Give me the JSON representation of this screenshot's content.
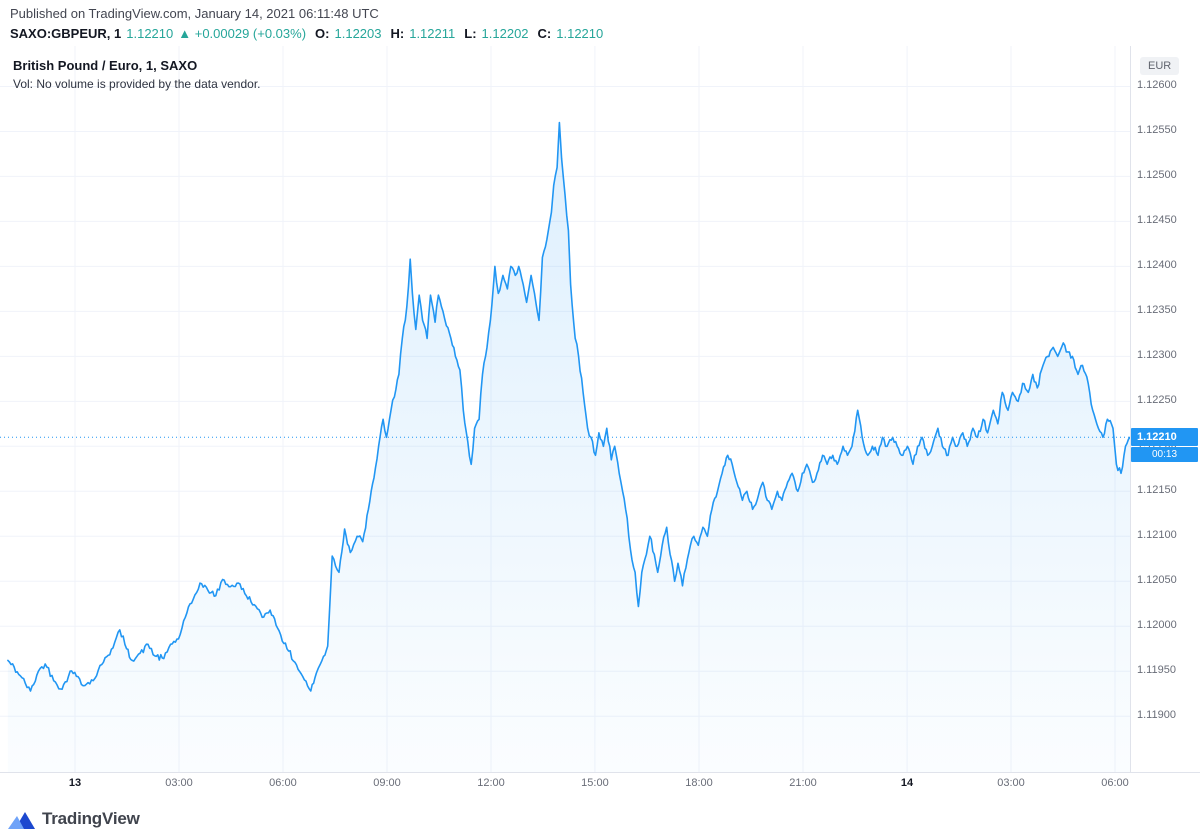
{
  "header": {
    "published": "Published on TradingView.com, January 14, 2021 06:11:48 UTC",
    "symbol": "SAXO:GBPEUR, 1",
    "last": "1.12210",
    "change": "▲ +0.00029 (+0.03%)",
    "ohlc": [
      {
        "label": "O:",
        "value": "1.12203"
      },
      {
        "label": "H:",
        "value": "1.12211"
      },
      {
        "label": "L:",
        "value": "1.12202"
      },
      {
        "label": "C:",
        "value": "1.12210"
      }
    ]
  },
  "legend": {
    "title": "British Pound / Euro, 1, SAXO",
    "volume_note": "Vol: No volume is provided by the data vendor."
  },
  "price_scale": {
    "currency": "EUR",
    "badge": "1.12210",
    "countdown": "00:13"
  },
  "footer": {
    "brand": "TradingView"
  },
  "colors": {
    "up_green": "#26a69a",
    "line_blue": "#2196f3",
    "axis_text": "#696d78",
    "grid": "#f0f3fa",
    "axis_border": "#e0e3eb"
  },
  "chart_data": {
    "type": "area",
    "title": "British Pound / Euro, 1, SAXO",
    "xlabel": "",
    "ylabel": "EUR",
    "ylim": [
      1.11838,
      1.12645
    ],
    "grid": true,
    "legend_position": "top-left",
    "current_price": 1.1221,
    "noise_amp": 4e-05,
    "noise_seed": 42,
    "colors": {
      "line": "#2196f3",
      "grid": "#f0f3fa",
      "border": "#e0e3eb"
    },
    "y_ticks": [
      "1.12600",
      "1.12550",
      "1.12500",
      "1.12450",
      "1.12400",
      "1.12350",
      "1.12300",
      "1.12250",
      "1.12200",
      "1.12150",
      "1.12100",
      "1.12050",
      "1.12000",
      "1.11950",
      "1.11900"
    ],
    "x_ticks": [
      {
        "text": "13",
        "t": 0.0664,
        "day": true
      },
      {
        "text": "03:00",
        "t": 0.1584
      },
      {
        "text": "06:00",
        "t": 0.2504
      },
      {
        "text": "09:00",
        "t": 0.3425
      },
      {
        "text": "12:00",
        "t": 0.4345
      },
      {
        "text": "15:00",
        "t": 0.5265
      },
      {
        "text": "18:00",
        "t": 0.6186
      },
      {
        "text": "21:00",
        "t": 0.7106
      },
      {
        "text": "14",
        "t": 0.8027,
        "day": true
      },
      {
        "text": "03:00",
        "t": 0.8947
      },
      {
        "text": "06:00",
        "t": 0.9867
      }
    ],
    "series": [
      {
        "name": "SAXO:GBPEUR",
        "points": [
          [
            0.007,
            1.11962
          ],
          [
            0.018,
            1.11945
          ],
          [
            0.027,
            1.11928
          ],
          [
            0.034,
            1.1195
          ],
          [
            0.04,
            1.11958
          ],
          [
            0.049,
            1.11938
          ],
          [
            0.055,
            1.1193
          ],
          [
            0.062,
            1.1195
          ],
          [
            0.069,
            1.11944
          ],
          [
            0.075,
            1.11934
          ],
          [
            0.084,
            1.11942
          ],
          [
            0.093,
            1.11965
          ],
          [
            0.1,
            1.11976
          ],
          [
            0.106,
            1.11996
          ],
          [
            0.112,
            1.11975
          ],
          [
            0.117,
            1.11962
          ],
          [
            0.124,
            1.1197
          ],
          [
            0.131,
            1.1198
          ],
          [
            0.137,
            1.11967
          ],
          [
            0.145,
            1.11964
          ],
          [
            0.151,
            1.1198
          ],
          [
            0.158,
            1.11986
          ],
          [
            0.164,
            1.1201
          ],
          [
            0.171,
            1.1203
          ],
          [
            0.177,
            1.12048
          ],
          [
            0.184,
            1.1204
          ],
          [
            0.191,
            1.12034
          ],
          [
            0.197,
            1.12052
          ],
          [
            0.204,
            1.12044
          ],
          [
            0.211,
            1.12048
          ],
          [
            0.218,
            1.12034
          ],
          [
            0.225,
            1.12024
          ],
          [
            0.232,
            1.1201
          ],
          [
            0.239,
            1.12018
          ],
          [
            0.247,
            1.11995
          ],
          [
            0.254,
            1.11975
          ],
          [
            0.261,
            1.1196
          ],
          [
            0.268,
            1.11944
          ],
          [
            0.275,
            1.11928
          ],
          [
            0.28,
            1.11948
          ],
          [
            0.285,
            1.11962
          ],
          [
            0.29,
            1.11978
          ],
          [
            0.294,
            1.12078
          ],
          [
            0.3,
            1.1206
          ],
          [
            0.305,
            1.12108
          ],
          [
            0.31,
            1.12082
          ],
          [
            0.316,
            1.121
          ],
          [
            0.321,
            1.12094
          ],
          [
            0.326,
            1.1213
          ],
          [
            0.331,
            1.12165
          ],
          [
            0.335,
            1.122
          ],
          [
            0.339,
            1.1223
          ],
          [
            0.342,
            1.1221
          ],
          [
            0.346,
            1.1224
          ],
          [
            0.349,
            1.12255
          ],
          [
            0.353,
            1.1228
          ],
          [
            0.356,
            1.1232
          ],
          [
            0.36,
            1.12355
          ],
          [
            0.363,
            1.12408
          ],
          [
            0.365,
            1.1237
          ],
          [
            0.368,
            1.1233
          ],
          [
            0.371,
            1.12368
          ],
          [
            0.374,
            1.1234
          ],
          [
            0.378,
            1.1232
          ],
          [
            0.381,
            1.12368
          ],
          [
            0.385,
            1.12338
          ],
          [
            0.388,
            1.12368
          ],
          [
            0.392,
            1.1235
          ],
          [
            0.395,
            1.12334
          ],
          [
            0.399,
            1.1232
          ],
          [
            0.403,
            1.123
          ],
          [
            0.407,
            1.12285
          ],
          [
            0.41,
            1.1224
          ],
          [
            0.414,
            1.12205
          ],
          [
            0.417,
            1.1218
          ],
          [
            0.42,
            1.1222
          ],
          [
            0.424,
            1.1223
          ],
          [
            0.427,
            1.1228
          ],
          [
            0.431,
            1.1231
          ],
          [
            0.434,
            1.1234
          ],
          [
            0.438,
            1.124
          ],
          [
            0.441,
            1.1237
          ],
          [
            0.445,
            1.1239
          ],
          [
            0.449,
            1.12375
          ],
          [
            0.452,
            1.124
          ],
          [
            0.456,
            1.1239
          ],
          [
            0.459,
            1.124
          ],
          [
            0.463,
            1.1238
          ],
          [
            0.466,
            1.1236
          ],
          [
            0.47,
            1.1239
          ],
          [
            0.473,
            1.1237
          ],
          [
            0.477,
            1.1234
          ],
          [
            0.48,
            1.1241
          ],
          [
            0.484,
            1.1243
          ],
          [
            0.488,
            1.1246
          ],
          [
            0.49,
            1.1249
          ],
          [
            0.493,
            1.1251
          ],
          [
            0.495,
            1.1256
          ],
          [
            0.497,
            1.1252
          ],
          [
            0.5,
            1.1248
          ],
          [
            0.503,
            1.1244
          ],
          [
            0.505,
            1.1238
          ],
          [
            0.509,
            1.1232
          ],
          [
            0.512,
            1.123
          ],
          [
            0.516,
            1.1226
          ],
          [
            0.52,
            1.1222
          ],
          [
            0.523,
            1.1221
          ],
          [
            0.527,
            1.1219
          ],
          [
            0.53,
            1.12215
          ],
          [
            0.534,
            1.122
          ],
          [
            0.537,
            1.1222
          ],
          [
            0.541,
            1.12185
          ],
          [
            0.544,
            1.122
          ],
          [
            0.548,
            1.1217
          ],
          [
            0.551,
            1.1215
          ],
          [
            0.555,
            1.1212
          ],
          [
            0.558,
            1.12085
          ],
          [
            0.562,
            1.1206
          ],
          [
            0.565,
            1.12022
          ],
          [
            0.568,
            1.1206
          ],
          [
            0.572,
            1.1208
          ],
          [
            0.575,
            1.121
          ],
          [
            0.579,
            1.1208
          ],
          [
            0.582,
            1.1206
          ],
          [
            0.586,
            1.1209
          ],
          [
            0.59,
            1.1211
          ],
          [
            0.593,
            1.1208
          ],
          [
            0.597,
            1.1205
          ],
          [
            0.6,
            1.1207
          ],
          [
            0.604,
            1.12045
          ],
          [
            0.607,
            1.12065
          ],
          [
            0.611,
            1.1209
          ],
          [
            0.614,
            1.121
          ],
          [
            0.618,
            1.1209
          ],
          [
            0.622,
            1.1211
          ],
          [
            0.626,
            1.121
          ],
          [
            0.63,
            1.1213
          ],
          [
            0.635,
            1.1215
          ],
          [
            0.639,
            1.1217
          ],
          [
            0.644,
            1.1219
          ],
          [
            0.648,
            1.1218
          ],
          [
            0.652,
            1.1216
          ],
          [
            0.657,
            1.1214
          ],
          [
            0.661,
            1.1215
          ],
          [
            0.666,
            1.1213
          ],
          [
            0.67,
            1.1214
          ],
          [
            0.675,
            1.1216
          ],
          [
            0.679,
            1.1214
          ],
          [
            0.683,
            1.1213
          ],
          [
            0.688,
            1.1215
          ],
          [
            0.692,
            1.1214
          ],
          [
            0.697,
            1.1216
          ],
          [
            0.701,
            1.1217
          ],
          [
            0.706,
            1.1215
          ],
          [
            0.71,
            1.1217
          ],
          [
            0.714,
            1.1218
          ],
          [
            0.719,
            1.1216
          ],
          [
            0.723,
            1.1217
          ],
          [
            0.728,
            1.1219
          ],
          [
            0.732,
            1.1218
          ],
          [
            0.737,
            1.1219
          ],
          [
            0.741,
            1.1218
          ],
          [
            0.746,
            1.122
          ],
          [
            0.75,
            1.1219
          ],
          [
            0.754,
            1.122
          ],
          [
            0.759,
            1.1224
          ],
          [
            0.763,
            1.1221
          ],
          [
            0.768,
            1.1219
          ],
          [
            0.772,
            1.122
          ],
          [
            0.777,
            1.1219
          ],
          [
            0.781,
            1.1221
          ],
          [
            0.785,
            1.122
          ],
          [
            0.79,
            1.1221
          ],
          [
            0.794,
            1.122
          ],
          [
            0.799,
            1.1219
          ],
          [
            0.803,
            1.122
          ],
          [
            0.808,
            1.1218
          ],
          [
            0.812,
            1.122
          ],
          [
            0.816,
            1.1221
          ],
          [
            0.821,
            1.1219
          ],
          [
            0.825,
            1.122
          ],
          [
            0.83,
            1.1222
          ],
          [
            0.834,
            1.122
          ],
          [
            0.839,
            1.1219
          ],
          [
            0.843,
            1.1221
          ],
          [
            0.847,
            1.122
          ],
          [
            0.852,
            1.12215
          ],
          [
            0.856,
            1.122
          ],
          [
            0.861,
            1.1222
          ],
          [
            0.865,
            1.1221
          ],
          [
            0.87,
            1.1223
          ],
          [
            0.874,
            1.12215
          ],
          [
            0.879,
            1.1224
          ],
          [
            0.883,
            1.12225
          ],
          [
            0.887,
            1.1226
          ],
          [
            0.892,
            1.1224
          ],
          [
            0.896,
            1.1226
          ],
          [
            0.901,
            1.1225
          ],
          [
            0.905,
            1.1227
          ],
          [
            0.91,
            1.1226
          ],
          [
            0.914,
            1.1228
          ],
          [
            0.918,
            1.12265
          ],
          [
            0.923,
            1.1229
          ],
          [
            0.927,
            1.123
          ],
          [
            0.932,
            1.1231
          ],
          [
            0.936,
            1.123
          ],
          [
            0.941,
            1.12315
          ],
          [
            0.945,
            1.12305
          ],
          [
            0.949,
            1.123
          ],
          [
            0.954,
            1.1228
          ],
          [
            0.958,
            1.1229
          ],
          [
            0.963,
            1.1227
          ],
          [
            0.967,
            1.1224
          ],
          [
            0.972,
            1.1222
          ],
          [
            0.976,
            1.1221
          ],
          [
            0.98,
            1.1223
          ],
          [
            0.985,
            1.1222
          ],
          [
            0.988,
            1.1218
          ],
          [
            0.992,
            1.1217
          ],
          [
            0.996,
            1.122
          ],
          [
            1,
            1.1221
          ]
        ]
      }
    ]
  }
}
